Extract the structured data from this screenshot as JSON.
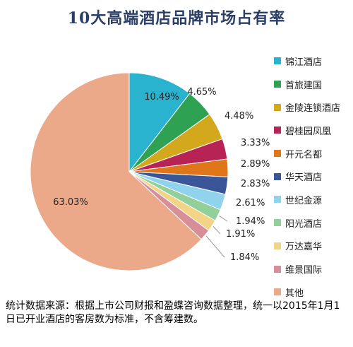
{
  "chart_data": {
    "type": "pie",
    "title": "10大高端酒店品牌市场占有率",
    "slices": [
      {
        "label": "锦江酒店",
        "value": 10.49,
        "display": "10.49%",
        "color": "#2ab3cf"
      },
      {
        "label": "首旅建国",
        "value": 4.65,
        "display": "4.65%",
        "color": "#2fa153"
      },
      {
        "label": "金陵连锁酒店",
        "value": 4.48,
        "display": "4.48%",
        "color": "#d4a81c"
      },
      {
        "label": "碧桂园凤凰",
        "value": 3.33,
        "display": "3.33%",
        "color": "#b72355"
      },
      {
        "label": "开元名都",
        "value": 2.89,
        "display": "2.89%",
        "color": "#e0761a"
      },
      {
        "label": "华天酒店",
        "value": 2.83,
        "display": "2.83%",
        "color": "#3b5698"
      },
      {
        "label": "世纪金源",
        "value": 2.61,
        "display": "2.61%",
        "color": "#8fd3ec"
      },
      {
        "label": "阳光酒店",
        "value": 1.94,
        "display": "1.94%",
        "color": "#92cf9b"
      },
      {
        "label": "万达嘉华",
        "value": 1.91,
        "display": "1.91%",
        "color": "#f3d486"
      },
      {
        "label": "维景国际",
        "value": 1.84,
        "display": "1.84%",
        "color": "#d88e99"
      },
      {
        "label": "其他",
        "value": 63.03,
        "display": "63.03%",
        "color": "#eba98a"
      }
    ],
    "start": "12 o'clock",
    "direction": "clockwise",
    "legend_position": "right"
  },
  "footnote": "统计数据来源：根据上市公司财报和盈蝶咨询数据整理，统一以2015年1月1日已开业酒店的客房数为标准，不含筹建数。"
}
